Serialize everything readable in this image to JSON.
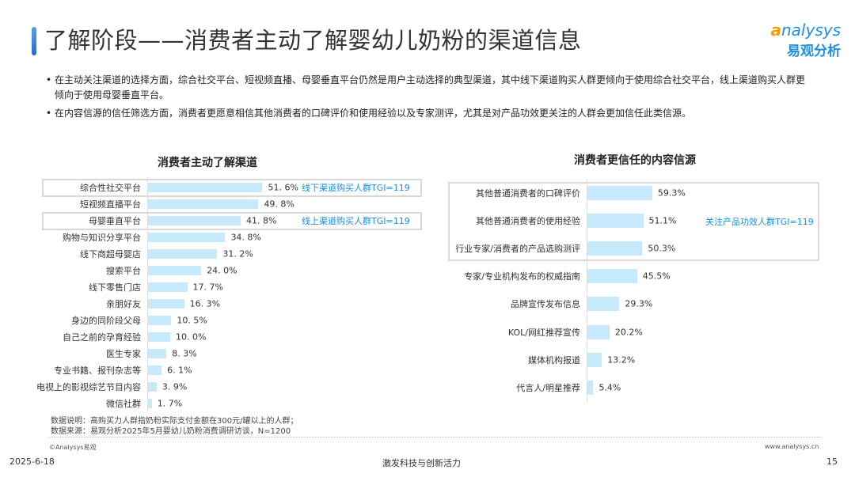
{
  "header": {
    "title": "了解阶段——消费者主动了解婴幼儿奶粉的渠道信息",
    "logo_en": "nalysys",
    "logo_en_initial": "a",
    "logo_cn": "易观分析"
  },
  "bullets": [
    "在主动关注渠道的选择方面，综合社交平台、短视频直播、母婴垂直平台仍然是用户主动选择的典型渠道，其中线下渠道购买人群更倾向于使用综合社交平台，线上渠道购买人群更倾向于使用母婴垂直平台。",
    "在内容信源的信任筛选方面，消费者更愿意相信其他消费者的口碑评价和使用经验以及专家测评，尤其是对产品功效更关注的人群会更加信任此类信源。"
  ],
  "bullet_symbol": "•",
  "colors": {
    "bar": "#c6eafc",
    "accent": "#1c8fe0",
    "highlight_border": "#d9d9d9"
  },
  "chart_data": [
    {
      "type": "bar",
      "orientation": "horizontal",
      "title": "消费者主动了解渠道",
      "categories": [
        "综合性社交平台",
        "短视频直播平台",
        "母婴垂直平台",
        "购物与知识分享平台",
        "线下商超母婴店",
        "搜索平台",
        "线下零售门店",
        "亲朋好友",
        "身边的同阶段父母",
        "自己之前的孕育经验",
        "医生专家",
        "专业书籍、报刊杂志等",
        "电视上的影视综艺节目内容",
        "微信社群"
      ],
      "values": [
        51.6,
        49.8,
        41.8,
        34.8,
        31.2,
        24.0,
        17.7,
        16.3,
        10.5,
        10.0,
        8.3,
        6.1,
        3.9,
        1.7
      ],
      "value_labels": [
        "51. 6%",
        "49. 8%",
        "41. 8%",
        "34. 8%",
        "31. 2%",
        "24. 0%",
        "17. 7%",
        "16. 3%",
        "10. 5%",
        "10. 0%",
        "8. 3%",
        "6. 1%",
        "3. 9%",
        "1. 7%"
      ],
      "highlights": [
        {
          "index": 0,
          "annotation": "线下渠道购买人群TGI=119"
        },
        {
          "index": 2,
          "annotation": "线上渠道购买人群TGI=119"
        }
      ]
    },
    {
      "type": "bar",
      "orientation": "horizontal",
      "title": "消费者更信任的内容信源",
      "categories": [
        "其他普通消费者的口碑评价",
        "其他普通消费者的使用经验",
        "行业专家/消费者的产品选购测评",
        "专家/专业机构发布的权威指南",
        "品牌宣传发布信息",
        "KOL/网红推荐宣传",
        "媒体机构报道",
        "代言人/明星推荐"
      ],
      "values": [
        59.3,
        51.1,
        50.3,
        45.5,
        29.3,
        20.2,
        13.2,
        5.4
      ],
      "value_labels": [
        "59.3%",
        "51.1%",
        "50.3%",
        "45.5%",
        "29.3%",
        "20.2%",
        "13.2%",
        "5.4%"
      ],
      "highlights": [
        {
          "index_range": [
            0,
            2
          ],
          "annotation": "关注产品功效人群TGI=119"
        }
      ]
    }
  ],
  "notes": {
    "description": "数据说明：高购买力人群指奶粉实际支付金额在300元/罐以上的人群；",
    "source": "数据来源：易观分析2025年5月婴幼儿奶粉消费调研访谈，N=1200"
  },
  "footer": {
    "copyright": "©Analysys易观",
    "website": "www.analysys.cn",
    "date": "2025-6-18",
    "slogan": "激发科技与创新活力",
    "page": "15"
  }
}
